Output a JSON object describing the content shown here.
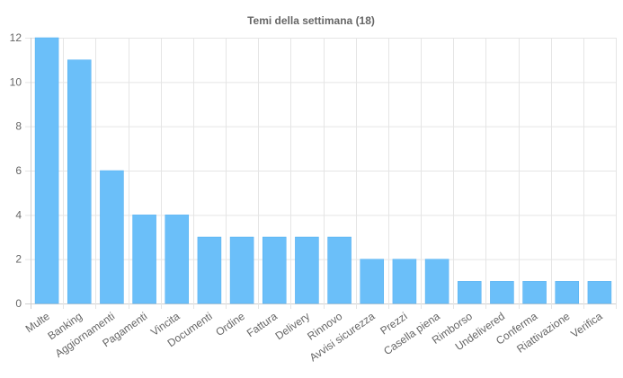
{
  "chart_data": {
    "type": "bar",
    "title": "Temi della settimana (18)",
    "xlabel": "",
    "ylabel": "",
    "categories": [
      "Multe",
      "Banking",
      "Aggiornamenti",
      "Pagamenti",
      "Vincita",
      "Documenti",
      "Ordine",
      "Fattura",
      "Delivery",
      "Rinnovo",
      "Avvisi sicurezza",
      "Prezzi",
      "Casella piena",
      "Rimborso",
      "Undelivered",
      "Conferma",
      "Riattivazione",
      "Verifica"
    ],
    "values": [
      12,
      11,
      6,
      4,
      4,
      3,
      3,
      3,
      3,
      3,
      2,
      2,
      2,
      1,
      1,
      1,
      1,
      1
    ],
    "ylim": [
      0,
      12
    ],
    "yticks": [
      0,
      2,
      4,
      6,
      8,
      10,
      12
    ],
    "grid": true,
    "legend": "none",
    "bar_color": "#6bbff9",
    "bar_border_color": "#53aff0"
  }
}
